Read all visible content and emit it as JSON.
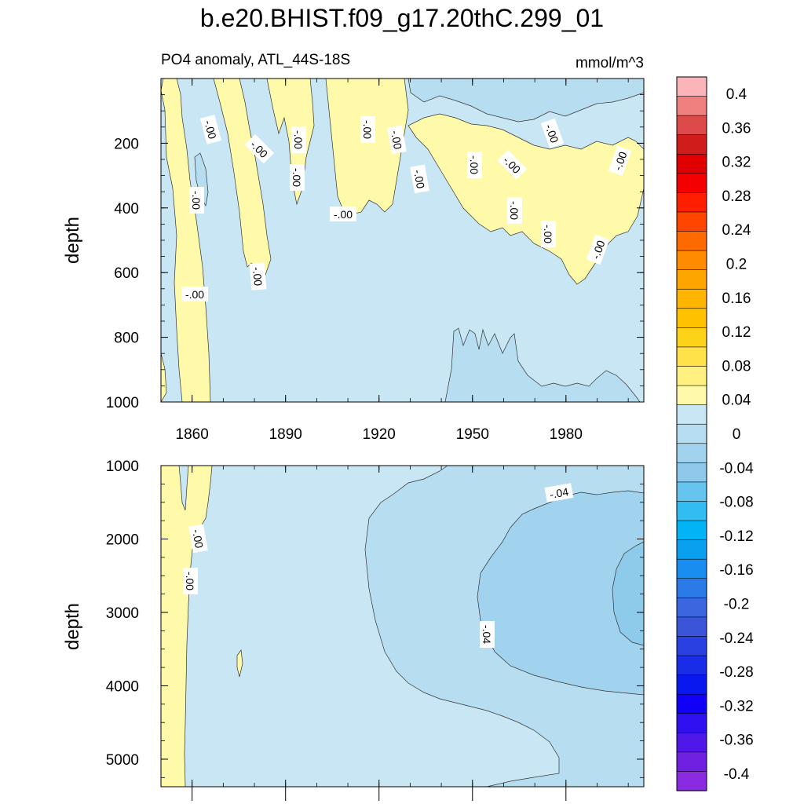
{
  "chart_data": {
    "type": "heatmap",
    "title": "b.e20.BHIST.f09_g17.20thC.299_01",
    "subtitle_left": "PO4 anomaly, ATL_44S-18S",
    "subtitle_right": "mmol/m^3",
    "x_ticks": [
      1860,
      1890,
      1920,
      1950,
      1980
    ],
    "xlim": [
      1850,
      2005
    ],
    "colorbar": {
      "labels": [
        "0.4",
        "0.36",
        "0.32",
        "0.28",
        "0.24",
        "0.2",
        "0.16",
        "0.12",
        "0.08",
        "0.04",
        "0",
        "-0.04",
        "-0.08",
        "-0.12",
        "-0.16",
        "-0.2",
        "-0.24",
        "-0.28",
        "-0.32",
        "-0.36",
        "-0.4"
      ],
      "colors": [
        "#fbb4b9",
        "#f08080",
        "#dd4a4a",
        "#d11c1c",
        "#e00000",
        "#f40000",
        "#ff1f00",
        "#ff4500",
        "#ff6a00",
        "#ff8c00",
        "#ffa500",
        "#ffb400",
        "#ffc100",
        "#ffd21a",
        "#ffe14a",
        "#fff080",
        "#fffaaa",
        "#c9e6f5",
        "#b6ddf1",
        "#a2d3ee",
        "#8ec9eb",
        "#66c4f0",
        "#32bcf2",
        "#00b4f5",
        "#0aa0f0",
        "#1a8ef0",
        "#2a7ae8",
        "#3a66e0",
        "#3a55d8",
        "#2a40e0",
        "#1a2ce8",
        "#0a18f0",
        "#1000f8",
        "#3010f0",
        "#5018e8",
        "#7020e0",
        "#8a2be2"
      ]
    },
    "panels": [
      {
        "name": "upper",
        "ylabel": "depth",
        "y_ticks": [
          200,
          400,
          600,
          800,
          1000
        ],
        "ylim": [
          0,
          1000
        ],
        "contour_labels": [
          "-.00",
          "-.00",
          "-.00",
          "-.00",
          "-.00",
          "-.00",
          "-.00",
          "-.00",
          "-.00",
          "-.00",
          "-.00",
          "-.00",
          "-.00",
          "-.00",
          "-.00",
          "-.00",
          "-.00"
        ]
      },
      {
        "name": "lower",
        "ylabel": "depth",
        "y_ticks": [
          1000,
          2000,
          3000,
          4000,
          5000
        ],
        "ylim": [
          1000,
          5375
        ],
        "contour_labels": [
          "-.00",
          "-.00",
          "-.04",
          "-.04"
        ]
      }
    ]
  }
}
